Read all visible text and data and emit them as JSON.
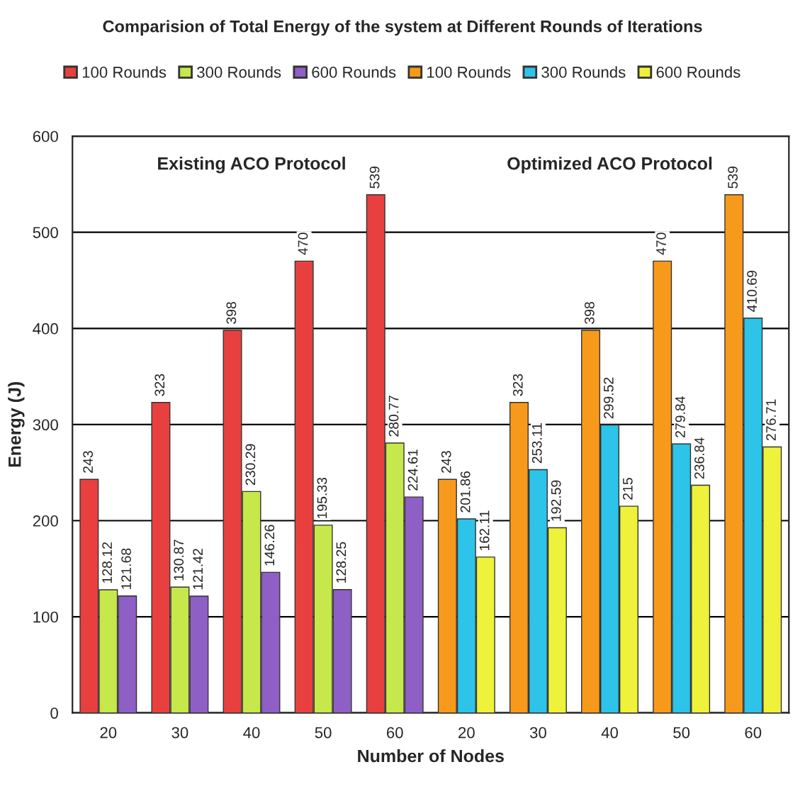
{
  "chart_data": {
    "type": "bar",
    "title": "Comparision of Total Energy of the system at Different Rounds of Iterations",
    "xlabel": "Number of Nodes",
    "ylabel": "Energy (J)",
    "categories": [
      "20",
      "30",
      "40",
      "50",
      "60",
      "20",
      "30",
      "40",
      "50",
      "60"
    ],
    "series": [
      {
        "name": "100 Rounds",
        "color": "#e8403f",
        "values": [
          243,
          323,
          398,
          470,
          539,
          null,
          null,
          null,
          null,
          null
        ]
      },
      {
        "name": "300 Rounds",
        "color": "#c6e84a",
        "values": [
          128.12,
          130.87,
          230.29,
          195.33,
          280.77,
          null,
          null,
          null,
          null,
          null
        ]
      },
      {
        "name": "600 Rounds",
        "color": "#8e5fc4",
        "values": [
          121.68,
          121.42,
          146.26,
          128.25,
          224.61,
          null,
          null,
          null,
          null,
          null
        ]
      },
      {
        "name": "100 Rounds",
        "color": "#f79a1c",
        "values": [
          null,
          null,
          null,
          null,
          null,
          243,
          323,
          398,
          470,
          539
        ]
      },
      {
        "name": "300 Rounds",
        "color": "#2ec3e8",
        "values": [
          null,
          null,
          null,
          null,
          null,
          201.86,
          253.11,
          299.52,
          279.84,
          410.69
        ]
      },
      {
        "name": "600 Rounds",
        "color": "#eef23a",
        "values": [
          null,
          null,
          null,
          null,
          null,
          162.11,
          192.59,
          215,
          236.84,
          276.71
        ]
      }
    ],
    "annotations": [
      "Existing ACO Protocol",
      "Optimized ACO Protocol"
    ],
    "ylim": [
      0,
      600
    ],
    "yticks": [
      0,
      100,
      200,
      300,
      400,
      500,
      600
    ],
    "grid": "y",
    "legend": "top",
    "data_labels": true
  }
}
